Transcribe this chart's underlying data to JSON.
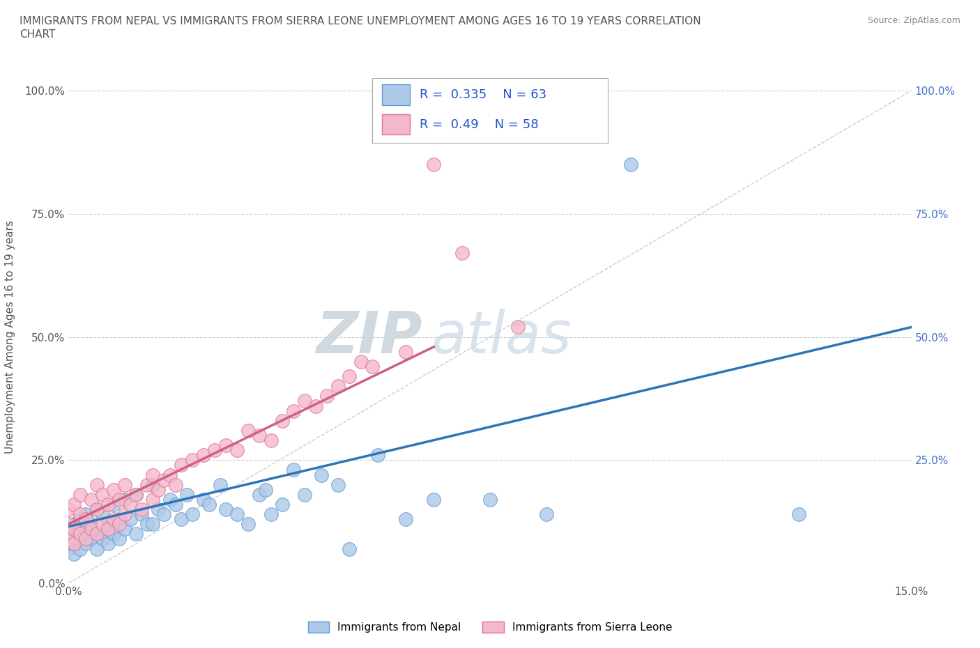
{
  "title_line1": "IMMIGRANTS FROM NEPAL VS IMMIGRANTS FROM SIERRA LEONE UNEMPLOYMENT AMONG AGES 16 TO 19 YEARS CORRELATION",
  "title_line2": "CHART",
  "source_text": "Source: ZipAtlas.com",
  "watermark_zip": "ZIP",
  "watermark_atlas": "atlas",
  "ylabel": "Unemployment Among Ages 16 to 19 years",
  "xlim": [
    0.0,
    0.15
  ],
  "ylim": [
    0.0,
    1.0
  ],
  "ytick_values": [
    0.0,
    0.25,
    0.5,
    0.75,
    1.0
  ],
  "ytick_labels": [
    "0.0%",
    "25.0%",
    "50.0%",
    "75.0%",
    "100.0%"
  ],
  "right_ytick_values": [
    0.25,
    0.5,
    0.75,
    1.0
  ],
  "right_ytick_labels": [
    "25.0%",
    "50.0%",
    "75.0%",
    "100.0%"
  ],
  "nepal": {
    "name": "Immigrants from Nepal",
    "color": "#adc8e8",
    "edge_color": "#5b9bd5",
    "R": 0.335,
    "N": 63,
    "trend_color": "#2e75b6",
    "trend_x0": 0.0,
    "trend_y0": 0.115,
    "trend_x1": 0.15,
    "trend_y1": 0.52
  },
  "sierra": {
    "name": "Immigrants from Sierra Leone",
    "color": "#f4b8cb",
    "edge_color": "#e07090",
    "R": 0.49,
    "N": 58,
    "trend_color": "#d06080",
    "trend_x0": 0.0,
    "trend_y0": 0.12,
    "trend_x1": 0.065,
    "trend_y1": 0.48
  },
  "diagonal_color": "#cccccc",
  "grid_color": "#cccccc",
  "background_color": "#ffffff",
  "title_color": "#555555",
  "source_color": "#888888",
  "legend_R_color": "#2255cc",
  "nepal_points_x": [
    0.0,
    0.0,
    0.0,
    0.001,
    0.001,
    0.001,
    0.002,
    0.002,
    0.002,
    0.003,
    0.003,
    0.003,
    0.004,
    0.004,
    0.005,
    0.005,
    0.005,
    0.006,
    0.006,
    0.007,
    0.007,
    0.008,
    0.008,
    0.009,
    0.009,
    0.01,
    0.01,
    0.011,
    0.012,
    0.012,
    0.013,
    0.014,
    0.015,
    0.015,
    0.016,
    0.017,
    0.018,
    0.019,
    0.02,
    0.021,
    0.022,
    0.024,
    0.025,
    0.027,
    0.028,
    0.03,
    0.032,
    0.034,
    0.035,
    0.036,
    0.038,
    0.04,
    0.042,
    0.045,
    0.048,
    0.05,
    0.055,
    0.06,
    0.065,
    0.075,
    0.085,
    0.1,
    0.13
  ],
  "nepal_points_y": [
    0.07,
    0.09,
    0.11,
    0.06,
    0.08,
    0.12,
    0.07,
    0.1,
    0.13,
    0.08,
    0.11,
    0.14,
    0.09,
    0.12,
    0.07,
    0.1,
    0.15,
    0.09,
    0.14,
    0.08,
    0.12,
    0.1,
    0.16,
    0.09,
    0.13,
    0.11,
    0.17,
    0.13,
    0.1,
    0.18,
    0.14,
    0.12,
    0.12,
    0.2,
    0.15,
    0.14,
    0.17,
    0.16,
    0.13,
    0.18,
    0.14,
    0.17,
    0.16,
    0.2,
    0.15,
    0.14,
    0.12,
    0.18,
    0.19,
    0.14,
    0.16,
    0.23,
    0.18,
    0.22,
    0.2,
    0.07,
    0.26,
    0.13,
    0.17,
    0.17,
    0.14,
    0.85,
    0.14
  ],
  "sierra_points_x": [
    0.0,
    0.0,
    0.0,
    0.001,
    0.001,
    0.001,
    0.002,
    0.002,
    0.002,
    0.003,
    0.003,
    0.004,
    0.004,
    0.005,
    0.005,
    0.005,
    0.006,
    0.006,
    0.007,
    0.007,
    0.008,
    0.008,
    0.009,
    0.009,
    0.01,
    0.01,
    0.011,
    0.012,
    0.013,
    0.014,
    0.015,
    0.015,
    0.016,
    0.017,
    0.018,
    0.019,
    0.02,
    0.022,
    0.024,
    0.026,
    0.028,
    0.03,
    0.032,
    0.034,
    0.036,
    0.038,
    0.04,
    0.042,
    0.044,
    0.046,
    0.048,
    0.05,
    0.052,
    0.054,
    0.06,
    0.065,
    0.07,
    0.08
  ],
  "sierra_points_y": [
    0.09,
    0.12,
    0.15,
    0.08,
    0.11,
    0.16,
    0.1,
    0.14,
    0.18,
    0.09,
    0.13,
    0.11,
    0.17,
    0.1,
    0.15,
    0.2,
    0.12,
    0.18,
    0.11,
    0.16,
    0.13,
    0.19,
    0.12,
    0.17,
    0.14,
    0.2,
    0.16,
    0.18,
    0.15,
    0.2,
    0.17,
    0.22,
    0.19,
    0.21,
    0.22,
    0.2,
    0.24,
    0.25,
    0.26,
    0.27,
    0.28,
    0.27,
    0.31,
    0.3,
    0.29,
    0.33,
    0.35,
    0.37,
    0.36,
    0.38,
    0.4,
    0.42,
    0.45,
    0.44,
    0.47,
    0.85,
    0.67,
    0.52
  ]
}
